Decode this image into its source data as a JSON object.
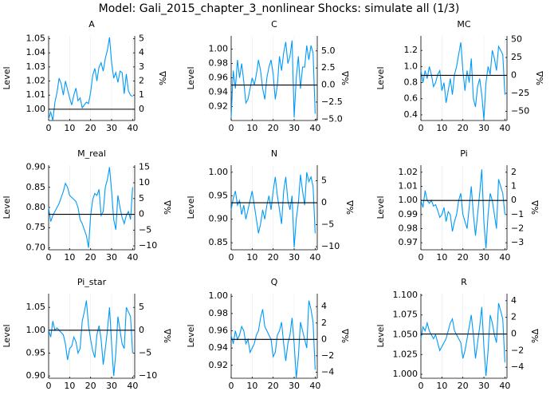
{
  "title": "Model: Gali_2015_chapter_3_nonlinear     Shocks: simulate all  (1/3)",
  "chart_data": [
    {
      "type": "line",
      "title": "A",
      "ylabel": "Level",
      "y2label": "%Δ",
      "color": "#009afa",
      "grid": true,
      "hline": 1.0,
      "x": [
        0,
        1,
        2,
        3,
        4,
        5,
        6,
        7,
        8,
        9,
        10,
        11,
        12,
        13,
        14,
        15,
        16,
        17,
        18,
        19,
        20,
        21,
        22,
        23,
        24,
        25,
        26,
        27,
        28,
        29,
        30,
        31,
        32,
        33,
        34,
        35,
        36,
        37,
        38,
        39,
        40
      ],
      "values": [
        0.993,
        0.998,
        0.992,
        1.005,
        1.012,
        1.022,
        1.018,
        1.01,
        1.02,
        1.014,
        1.008,
        1.003,
        1.01,
        1.015,
        1.006,
        1.008,
        1.001,
        1.003,
        1.005,
        1.004,
        1.012,
        1.024,
        1.029,
        1.02,
        1.03,
        1.033,
        1.027,
        1.036,
        1.042,
        1.051,
        1.033,
        1.022,
        1.026,
        1.019,
        1.027,
        1.026,
        1.011,
        1.025,
        1.013,
        1.01,
        1.009
      ],
      "xlim": [
        0,
        41
      ],
      "xticks": [
        0,
        10,
        20,
        30,
        40
      ],
      "ylim": [
        0.992,
        1.052
      ],
      "yticks": [
        {
          "value": 1.0,
          "label": "1.00"
        },
        1.01,
        1.02,
        1.03,
        1.04,
        1.05
      ],
      "y2lim": [
        -0.8,
        5.2
      ],
      "y2ticks": [
        0,
        1,
        2,
        3,
        4,
        5
      ]
    },
    {
      "type": "line",
      "title": "C",
      "ylabel": "Level",
      "y2label": "%Δ",
      "color": "#009afa",
      "grid": true,
      "hline": 0.95,
      "x": [
        0,
        1,
        2,
        3,
        4,
        5,
        6,
        7,
        8,
        9,
        10,
        11,
        12,
        13,
        14,
        15,
        16,
        17,
        18,
        19,
        20,
        21,
        22,
        23,
        24,
        25,
        26,
        27,
        28,
        29,
        30,
        31,
        32,
        33,
        34,
        35,
        36,
        37,
        38,
        39,
        40
      ],
      "values": [
        0.905,
        0.97,
        0.945,
        0.985,
        0.96,
        0.98,
        0.955,
        0.925,
        0.93,
        0.945,
        0.96,
        0.95,
        0.965,
        0.985,
        0.97,
        0.945,
        0.93,
        0.96,
        0.975,
        0.985,
        0.965,
        0.93,
        0.95,
        0.99,
        0.97,
        0.995,
        1.01,
        0.98,
        0.99,
        1.012,
        0.905,
        0.96,
        0.99,
        0.945,
        0.975,
        0.975,
        1.005,
        0.985,
        1.005,
        0.995,
        0.91
      ],
      "xlim": [
        0,
        41
      ],
      "xticks": [
        0,
        10,
        20,
        30,
        40
      ],
      "ylim": [
        0.9006,
        1.0184
      ],
      "yticks": [
        0.92,
        0.94,
        0.96,
        0.98,
        {
          "value": 1.0,
          "label": "1.00"
        }
      ],
      "y2lim": [
        -5.2,
        7.2
      ],
      "y2ticks": [
        {
          "value": -5,
          "label": "−5.0"
        },
        {
          "value": -2.5,
          "label": "−2.5"
        },
        {
          "value": 0,
          "label": "0.0"
        },
        2.5,
        {
          "value": 5,
          "label": "5.0"
        }
      ]
    },
    {
      "type": "line",
      "title": "MC",
      "ylabel": "Level",
      "y2label": "%Δ",
      "color": "#009afa",
      "grid": true,
      "hline": 0.89,
      "x": [
        0,
        1,
        2,
        3,
        4,
        5,
        6,
        7,
        8,
        9,
        10,
        11,
        12,
        13,
        14,
        15,
        16,
        17,
        18,
        19,
        20,
        21,
        22,
        23,
        24,
        25,
        26,
        27,
        28,
        29,
        30,
        31,
        32,
        33,
        34,
        35,
        36,
        37,
        38,
        39,
        40
      ],
      "values": [
        0.95,
        0.8,
        0.95,
        0.85,
        1.0,
        0.9,
        0.75,
        0.8,
        0.9,
        0.95,
        0.7,
        0.8,
        0.55,
        0.7,
        0.85,
        0.65,
        0.9,
        1.0,
        1.15,
        1.3,
        0.95,
        0.7,
        0.95,
        0.8,
        1.1,
        0.6,
        0.5,
        0.75,
        0.85,
        0.65,
        0.34,
        0.8,
        1.0,
        0.9,
        1.2,
        1.1,
        0.95,
        1.25,
        1.2,
        1.15,
        0.65
      ],
      "xlim": [
        0,
        41
      ],
      "xticks": [
        0,
        10,
        20,
        30,
        40
      ],
      "ylim": [
        0.33,
        1.38
      ],
      "yticks": [
        0.4,
        0.6,
        0.8,
        {
          "value": 1.0,
          "label": "1.0"
        },
        1.2
      ],
      "y2lim": [
        -62.9,
        55.1
      ],
      "y2ticks": [
        {
          "value": -50,
          "label": "−50"
        },
        {
          "value": -25,
          "label": "−25"
        },
        0,
        25,
        50
      ]
    },
    {
      "type": "line",
      "title": "M_real",
      "ylabel": "Level",
      "y2label": "%Δ",
      "color": "#009afa",
      "grid": true,
      "hline": 0.783,
      "x": [
        0,
        1,
        2,
        3,
        4,
        5,
        6,
        7,
        8,
        9,
        10,
        11,
        12,
        13,
        14,
        15,
        16,
        17,
        18,
        19,
        20,
        21,
        22,
        23,
        24,
        25,
        26,
        27,
        28,
        29,
        30,
        31,
        32,
        33,
        34,
        35,
        36,
        37,
        38,
        39,
        40
      ],
      "values": [
        0.8,
        0.765,
        0.78,
        0.79,
        0.8,
        0.81,
        0.825,
        0.84,
        0.86,
        0.85,
        0.83,
        0.825,
        0.82,
        0.815,
        0.8,
        0.77,
        0.76,
        0.745,
        0.73,
        0.7,
        0.78,
        0.82,
        0.835,
        0.83,
        0.845,
        0.78,
        0.79,
        0.85,
        0.87,
        0.9,
        0.84,
        0.77,
        0.745,
        0.83,
        0.8,
        0.775,
        0.76,
        0.78,
        0.79,
        0.77,
        0.85
      ],
      "xlim": [
        0,
        41
      ],
      "xticks": [
        0,
        10,
        20,
        30,
        40
      ],
      "ylim": [
        0.695,
        0.905
      ],
      "yticks": [
        {
          "value": 0.7,
          "label": "0.70"
        },
        0.75,
        {
          "value": 0.8,
          "label": "0.80"
        },
        0.85,
        {
          "value": 0.9,
          "label": "0.90"
        }
      ],
      "y2lim": [
        -11.24,
        15.58
      ],
      "y2ticks": [
        {
          "value": -10,
          "label": "−10"
        },
        {
          "value": -5,
          "label": "−5"
        },
        0,
        5,
        10,
        15
      ]
    },
    {
      "type": "line",
      "title": "N",
      "ylabel": "Level",
      "y2label": "%Δ",
      "color": "#009afa",
      "grid": true,
      "hline": 0.935,
      "x": [
        0,
        1,
        2,
        3,
        4,
        5,
        6,
        7,
        8,
        9,
        10,
        11,
        12,
        13,
        14,
        15,
        16,
        17,
        18,
        19,
        20,
        21,
        22,
        23,
        24,
        25,
        26,
        27,
        28,
        29,
        30,
        31,
        32,
        33,
        34,
        35,
        36,
        37,
        38,
        39,
        40
      ],
      "values": [
        0.92,
        0.945,
        0.96,
        0.93,
        0.94,
        0.91,
        0.93,
        0.9,
        0.92,
        0.94,
        0.96,
        0.93,
        0.9,
        0.87,
        0.89,
        0.92,
        0.9,
        0.93,
        0.95,
        0.92,
        0.96,
        0.99,
        0.95,
        0.92,
        0.89,
        0.96,
        0.99,
        0.94,
        0.92,
        0.95,
        0.84,
        0.9,
        0.935,
        0.995,
        0.96,
        0.93,
        1.0,
        0.98,
        0.99,
        0.97,
        0.87
      ],
      "xlim": [
        0,
        41
      ],
      "xticks": [
        0,
        10,
        20,
        30,
        40
      ],
      "ylim": [
        0.835,
        1.015
      ],
      "yticks": [
        0.85,
        {
          "value": 0.9,
          "label": "0.90"
        },
        0.95,
        {
          "value": 1.0,
          "label": "1.00"
        }
      ],
      "y2lim": [
        -10.7,
        8.56
      ],
      "y2ticks": [
        {
          "value": -10,
          "label": "−10"
        },
        {
          "value": -5,
          "label": "−5"
        },
        0,
        5
      ]
    },
    {
      "type": "line",
      "title": "Pi",
      "ylabel": "Level",
      "y2label": "%Δ",
      "color": "#009afa",
      "grid": true,
      "hline": 1.0,
      "x": [
        0,
        1,
        2,
        3,
        4,
        5,
        6,
        7,
        8,
        9,
        10,
        11,
        12,
        13,
        14,
        15,
        16,
        17,
        18,
        19,
        20,
        21,
        22,
        23,
        24,
        25,
        26,
        27,
        28,
        29,
        30,
        31,
        32,
        33,
        34,
        35,
        36,
        37,
        38,
        39,
        40
      ],
      "values": [
        1.0,
        0.995,
        1.007,
        1.0,
        0.998,
        1.0,
        0.996,
        0.997,
        0.993,
        0.988,
        0.99,
        0.995,
        0.985,
        0.992,
        0.99,
        0.978,
        0.985,
        0.99,
        1.0,
        1.005,
        0.99,
        0.985,
        0.98,
        0.995,
        1.01,
        0.99,
        0.975,
        0.99,
        1.005,
        1.022,
        0.985,
        0.966,
        0.99,
        1.005,
        1.0,
        0.99,
        0.98,
        1.015,
        1.01,
        1.005,
        0.99
      ],
      "xlim": [
        0,
        41
      ],
      "xticks": [
        0,
        10,
        20,
        30,
        40
      ],
      "ylim": [
        0.965,
        1.025
      ],
      "yticks": [
        0.97,
        0.98,
        0.99,
        {
          "value": 1.0,
          "label": "1.00"
        },
        1.01,
        1.02
      ],
      "y2lim": [
        -3.5,
        2.5
      ],
      "y2ticks": [
        {
          "value": -3,
          "label": "−3"
        },
        {
          "value": -2,
          "label": "−2"
        },
        {
          "value": -1,
          "label": "−1"
        },
        0,
        1,
        2
      ]
    },
    {
      "type": "line",
      "title": "Pi_star",
      "ylabel": "Level",
      "y2label": "%Δ",
      "color": "#009afa",
      "grid": true,
      "hline": 1.0,
      "x": [
        0,
        1,
        2,
        3,
        4,
        5,
        6,
        7,
        8,
        9,
        10,
        11,
        12,
        13,
        14,
        15,
        16,
        17,
        18,
        19,
        20,
        21,
        22,
        23,
        24,
        25,
        26,
        27,
        28,
        29,
        30,
        31,
        32,
        33,
        34,
        35,
        36,
        37,
        38,
        39,
        40
      ],
      "values": [
        1.0,
        0.985,
        1.02,
        1.0,
        1.005,
        1.0,
        0.995,
        0.99,
        0.97,
        0.935,
        0.96,
        0.965,
        0.985,
        0.975,
        0.95,
        0.96,
        1.02,
        1.04,
        1.065,
        1.01,
        0.98,
        0.955,
        0.94,
        0.99,
        1.01,
        0.98,
        0.925,
        0.96,
        1.0,
        1.05,
        0.97,
        0.9,
        0.95,
        1.03,
        1.0,
        0.97,
        0.96,
        1.05,
        1.04,
        1.03,
        0.95
      ],
      "xlim": [
        0,
        41
      ],
      "xticks": [
        0,
        10,
        20,
        30,
        40
      ],
      "ylim": [
        0.895,
        1.08
      ],
      "yticks": [
        {
          "value": 0.9,
          "label": "0.90"
        },
        0.95,
        {
          "value": 1.0,
          "label": "1.00"
        },
        1.05
      ],
      "y2lim": [
        -10.5,
        8
      ],
      "y2ticks": [
        {
          "value": -10,
          "label": "−10"
        },
        {
          "value": -5,
          "label": "−5"
        },
        0,
        5
      ]
    },
    {
      "type": "line",
      "title": "Q",
      "ylabel": "Level",
      "y2label": "%Δ",
      "color": "#009afa",
      "grid": true,
      "hline": 0.95,
      "x": [
        0,
        1,
        2,
        3,
        4,
        5,
        6,
        7,
        8,
        9,
        10,
        11,
        12,
        13,
        14,
        15,
        16,
        17,
        18,
        19,
        20,
        21,
        22,
        23,
        24,
        25,
        26,
        27,
        28,
        29,
        30,
        31,
        32,
        33,
        34,
        35,
        36,
        37,
        38,
        39,
        40
      ],
      "values": [
        0.955,
        0.945,
        0.96,
        0.95,
        0.955,
        0.965,
        0.96,
        0.945,
        0.95,
        0.935,
        0.94,
        0.945,
        0.955,
        0.96,
        0.975,
        0.985,
        0.965,
        0.96,
        0.955,
        0.95,
        0.93,
        0.935,
        0.955,
        0.96,
        0.97,
        0.945,
        0.925,
        0.945,
        0.955,
        0.975,
        0.945,
        0.905,
        0.93,
        0.97,
        0.96,
        0.95,
        0.94,
        0.995,
        0.985,
        0.97,
        0.915
      ],
      "xlim": [
        0,
        41
      ],
      "xticks": [
        0,
        10,
        20,
        30,
        40
      ],
      "ylim": [
        0.905,
        1.003
      ],
      "yticks": [
        0.92,
        0.94,
        0.96,
        0.98,
        {
          "value": 1.0,
          "label": "1.00"
        }
      ],
      "y2lim": [
        -4.74,
        5.58
      ],
      "y2ticks": [
        {
          "value": -4,
          "label": "−4"
        },
        {
          "value": -2,
          "label": "−2"
        },
        0,
        2,
        4
      ]
    },
    {
      "type": "line",
      "title": "R",
      "ylabel": "Level",
      "y2label": "%Δ",
      "color": "#009afa",
      "grid": true,
      "hline": 1.051,
      "x": [
        0,
        1,
        2,
        3,
        4,
        5,
        6,
        7,
        8,
        9,
        10,
        11,
        12,
        13,
        14,
        15,
        16,
        17,
        18,
        19,
        20,
        21,
        22,
        23,
        24,
        25,
        26,
        27,
        28,
        29,
        30,
        31,
        32,
        33,
        34,
        35,
        36,
        37,
        38,
        39,
        40
      ],
      "values": [
        1.045,
        1.06,
        1.055,
        1.065,
        1.055,
        1.05,
        1.045,
        1.05,
        1.04,
        1.03,
        1.035,
        1.04,
        1.045,
        1.055,
        1.065,
        1.07,
        1.055,
        1.05,
        1.045,
        1.04,
        1.02,
        1.03,
        1.045,
        1.06,
        1.075,
        1.05,
        1.02,
        1.04,
        1.06,
        1.085,
        1.035,
        0.998,
        1.03,
        1.075,
        1.065,
        1.05,
        1.04,
        1.09,
        1.08,
        1.07,
        1.015
      ],
      "xlim": [
        0,
        41
      ],
      "xticks": [
        0,
        10,
        20,
        30,
        40
      ],
      "ylim": [
        0.995,
        1.102
      ],
      "yticks": [
        {
          "value": 1.0,
          "label": "1.000"
        },
        1.025,
        {
          "value": 1.05,
          "label": "1.050"
        },
        1.075,
        {
          "value": 1.1,
          "label": "1.100"
        }
      ],
      "y2lim": [
        -5.33,
        4.85
      ],
      "y2ticks": [
        {
          "value": -4,
          "label": "−4"
        },
        {
          "value": -2,
          "label": "−2"
        },
        0,
        2,
        4
      ]
    }
  ]
}
